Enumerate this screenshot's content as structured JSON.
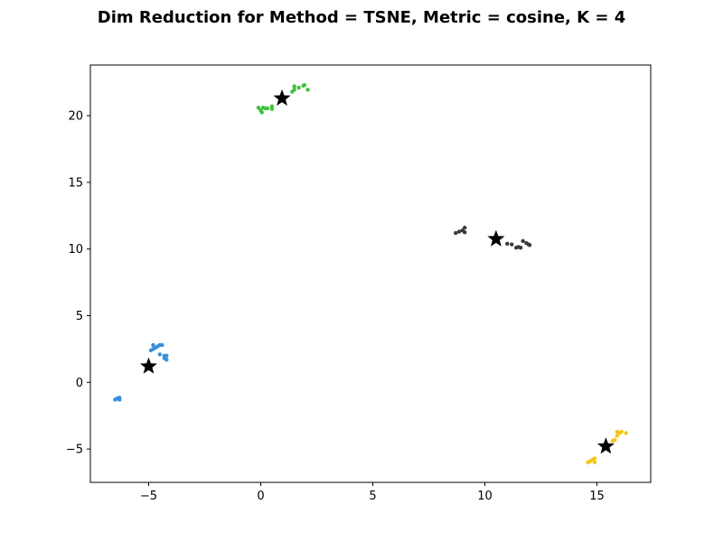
{
  "chart_data": {
    "type": "scatter",
    "title": "Dim Reduction for Method = TSNE, Metric = cosine, K = 4",
    "xlabel": "",
    "ylabel": "",
    "xlim": [
      -7.6,
      17.4
    ],
    "ylim": [
      -7.5,
      23.8
    ],
    "grid": false,
    "x_ticks": [
      -5,
      0,
      5,
      10,
      15
    ],
    "y_ticks": [
      -5,
      0,
      5,
      10,
      15,
      20
    ],
    "series": [
      {
        "color": "#3a8fd8",
        "points": [
          [
            -6.5,
            -1.3
          ],
          [
            -6.4,
            -1.2
          ],
          [
            -6.3,
            -1.3
          ],
          [
            -6.3,
            -1.15
          ],
          [
            -6.35,
            -1.25
          ],
          [
            -4.9,
            2.4
          ],
          [
            -4.8,
            2.5
          ],
          [
            -4.8,
            2.8
          ],
          [
            -4.7,
            2.6
          ],
          [
            -4.6,
            2.7
          ],
          [
            -4.5,
            2.8
          ],
          [
            -4.4,
            2.8
          ],
          [
            -4.5,
            2.1
          ],
          [
            -4.3,
            2.0
          ],
          [
            -4.3,
            1.8
          ],
          [
            -4.2,
            2.0
          ],
          [
            -4.2,
            1.7
          ]
        ]
      },
      {
        "color": "#3cc43c",
        "points": [
          [
            -0.1,
            20.6
          ],
          [
            0.0,
            20.4
          ],
          [
            0.05,
            20.25
          ],
          [
            0.1,
            20.6
          ],
          [
            0.2,
            20.55
          ],
          [
            0.3,
            20.55
          ],
          [
            0.5,
            20.5
          ],
          [
            0.5,
            20.7
          ],
          [
            1.4,
            21.8
          ],
          [
            1.5,
            21.95
          ],
          [
            1.5,
            22.2
          ],
          [
            1.7,
            22.1
          ],
          [
            1.9,
            22.25
          ],
          [
            1.95,
            22.3
          ],
          [
            2.1,
            21.95
          ]
        ]
      },
      {
        "color": "#3a3a3a",
        "points": [
          [
            8.7,
            11.2
          ],
          [
            8.85,
            11.3
          ],
          [
            9.0,
            11.4
          ],
          [
            9.1,
            11.25
          ],
          [
            9.1,
            11.6
          ],
          [
            11.0,
            10.4
          ],
          [
            11.2,
            10.35
          ],
          [
            11.4,
            10.1
          ],
          [
            11.5,
            10.15
          ],
          [
            11.6,
            10.1
          ],
          [
            11.7,
            10.6
          ],
          [
            11.85,
            10.45
          ],
          [
            11.95,
            10.35
          ],
          [
            12.0,
            10.3
          ]
        ]
      },
      {
        "color": "#f5c518",
        "points": [
          [
            14.6,
            -6.0
          ],
          [
            14.7,
            -5.9
          ],
          [
            14.8,
            -5.8
          ],
          [
            14.9,
            -5.7
          ],
          [
            14.9,
            -6.0
          ],
          [
            15.3,
            -5.0
          ],
          [
            15.5,
            -4.7
          ],
          [
            15.7,
            -4.4
          ],
          [
            15.8,
            -4.3
          ],
          [
            15.9,
            -4.0
          ],
          [
            15.9,
            -3.7
          ],
          [
            16.0,
            -3.8
          ],
          [
            16.1,
            -3.7
          ],
          [
            16.3,
            -3.8
          ]
        ]
      }
    ],
    "centroids": [
      [
        -5.0,
        1.2
      ],
      [
        0.95,
        21.3
      ],
      [
        10.5,
        10.75
      ],
      [
        15.4,
        -4.8
      ]
    ],
    "centroid_color": "#000000"
  }
}
